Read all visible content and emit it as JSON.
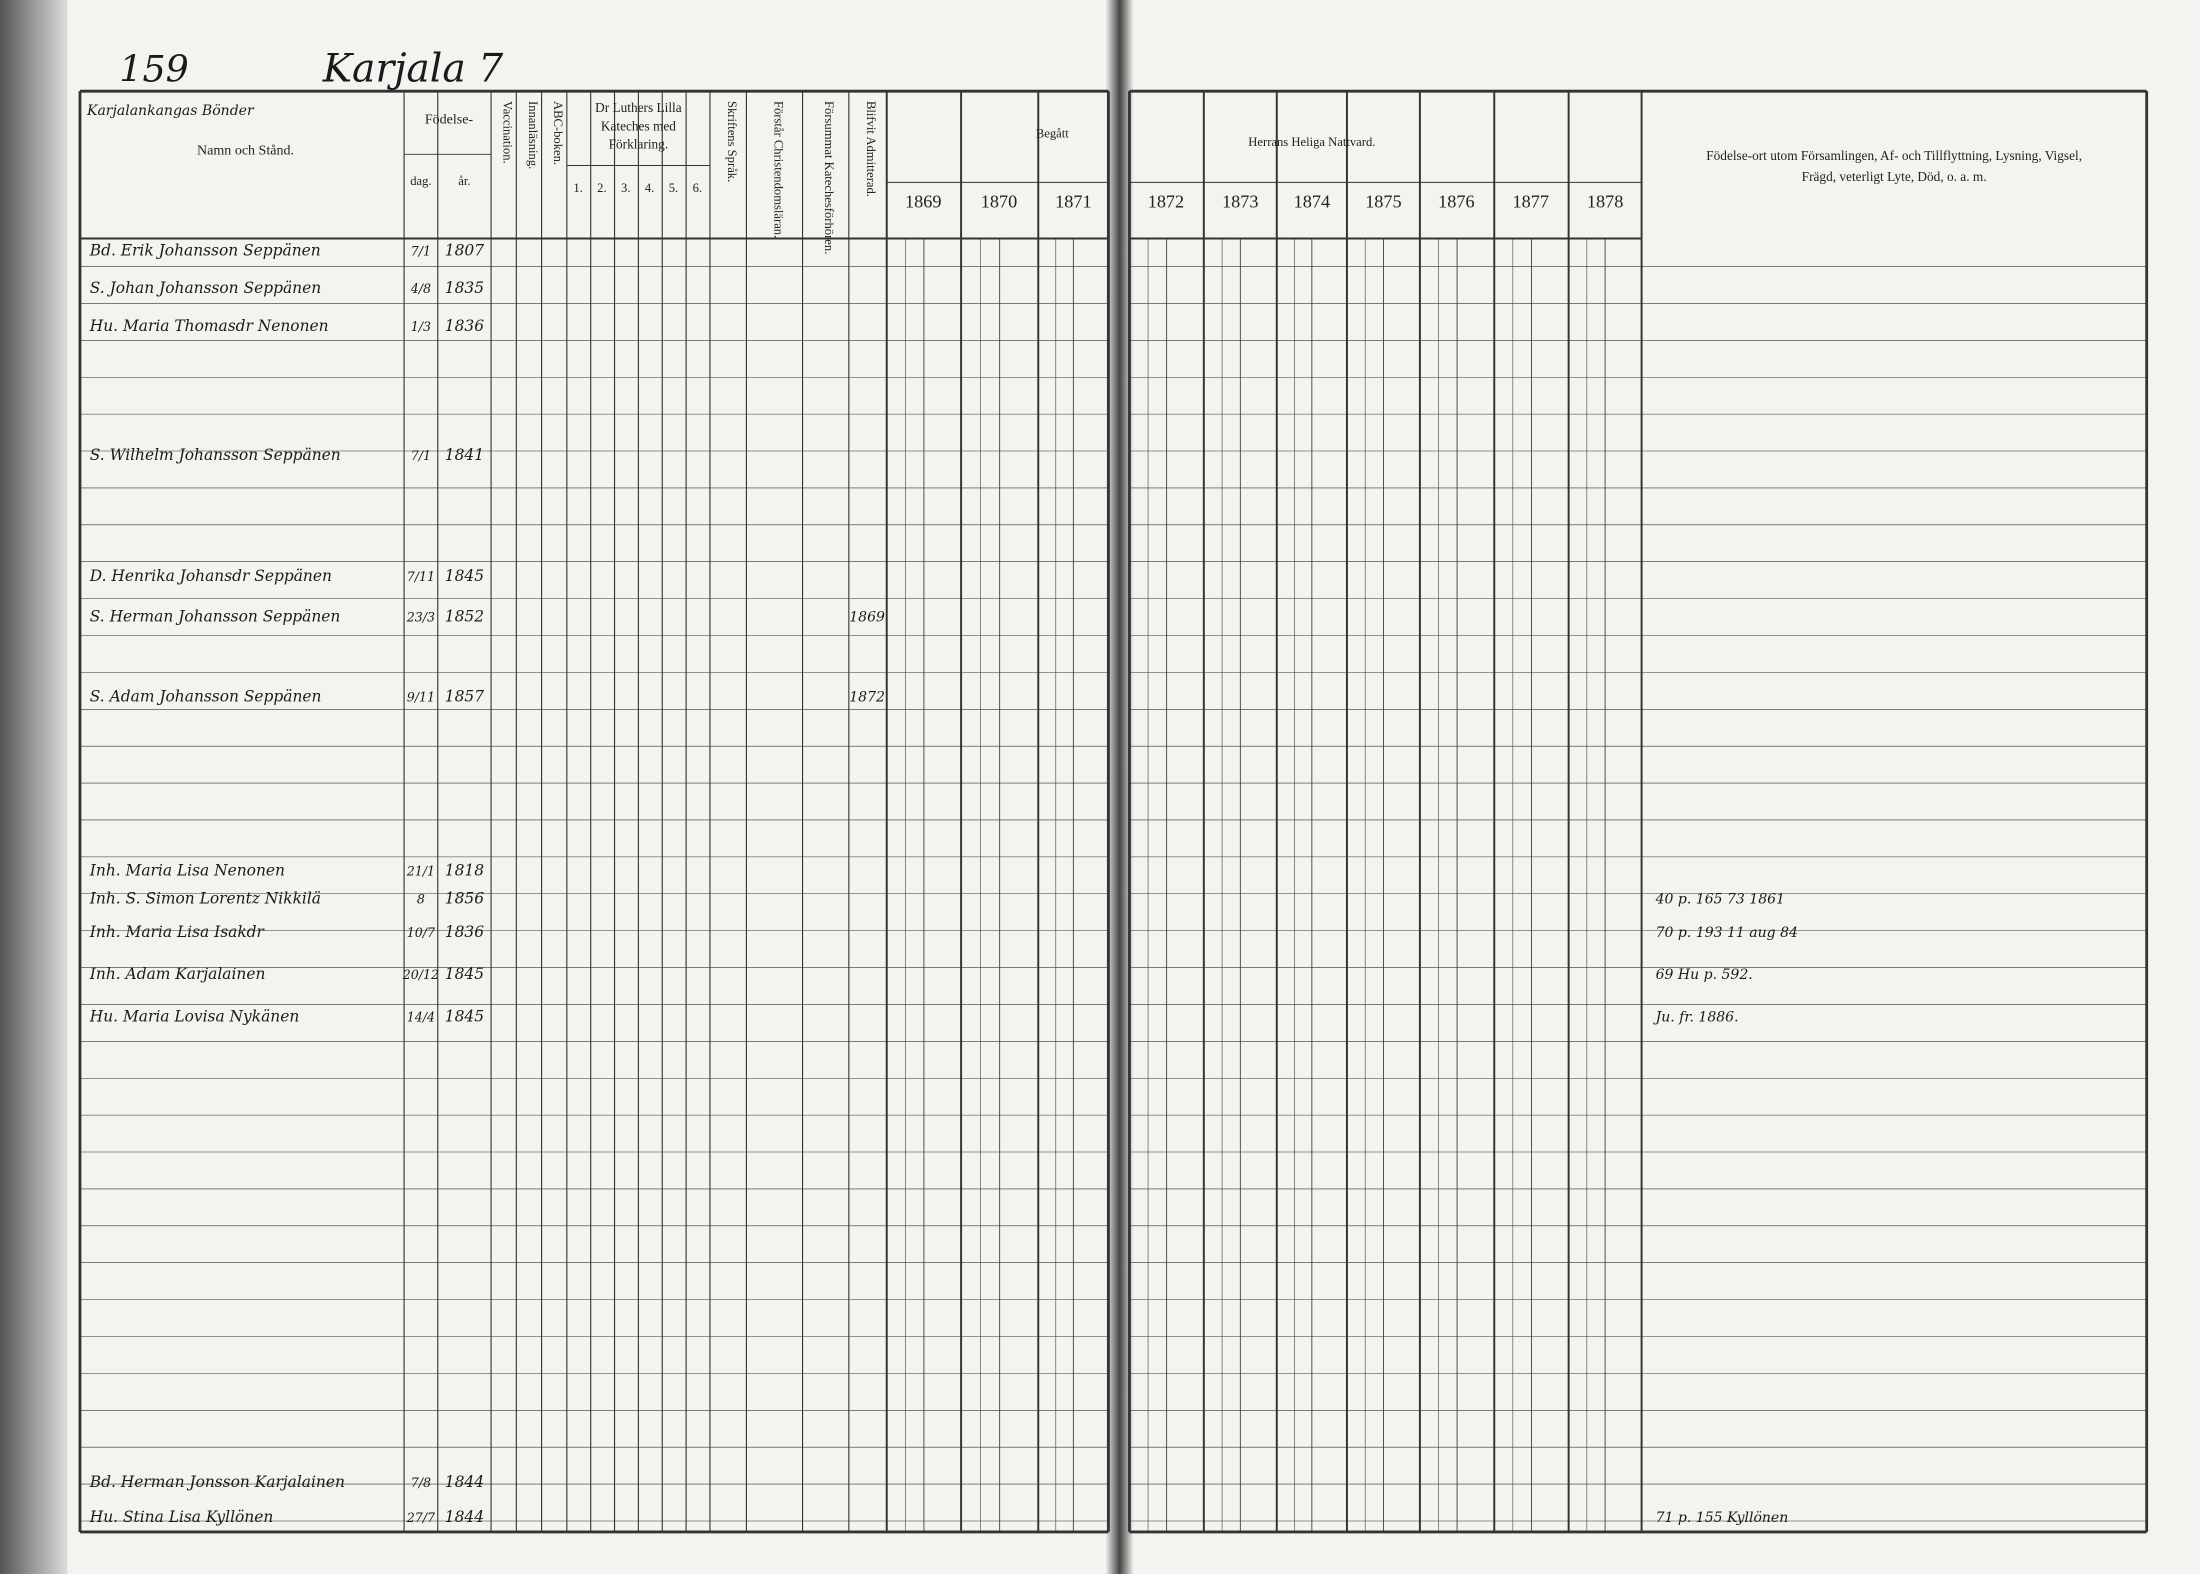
{
  "header": {
    "page_number": "159",
    "place": "Karjala 7",
    "village": "Karjalankangas Bönder"
  },
  "columns": {
    "name": "Namn och Stånd.",
    "birth": "Födelse-",
    "day": "dag.",
    "year": "år.",
    "vaccination": "Vaccination.",
    "reading": "Innanläsning.",
    "abc": "ABC-boken.",
    "catechism": [
      "Dr Luthers Lilla",
      "Kateches med",
      "Förklaring."
    ],
    "catechism_parts": [
      "1.",
      "2.",
      "3.",
      "4.",
      "5.",
      "6."
    ],
    "scripture": "Skriftens Språk.",
    "understands": "Förstår Christendomsläran.",
    "neglected": "Försummat Katechesförhören.",
    "admitted": "Blifvit Admitterad.",
    "begatt": "Begått",
    "communion": "Herrans Heliga Nattvard.",
    "years": [
      "1869",
      "1870",
      "1871",
      "1872",
      "1873",
      "1874",
      "1875",
      "1876",
      "1877",
      "1878"
    ],
    "notes": [
      "Födelse-ort utom Församlingen, Af- och Tillflyttning, Lysning, Vigsel,",
      "Frägd, veterligt Lyte, Död, o. a. m."
    ]
  },
  "rows": [
    {
      "name": "Bd. Erik Johansson Seppänen",
      "day": "7/1",
      "year": "1807"
    },
    {
      "name": "S. Johan Johansson Seppänen",
      "day": "4/8",
      "year": "1835"
    },
    {
      "name": "Hu. Maria Thomasdr Nenonen",
      "day": "1/3",
      "year": "1836"
    },
    {
      "name": "S. Wilhelm Johansson Seppänen",
      "day": "7/1",
      "year": "1841"
    },
    {
      "name": "D. Henrika Johansdr Seppänen",
      "day": "7/11",
      "year": "1845"
    },
    {
      "name": "S. Herman Johansson Seppänen",
      "day": "23/3",
      "year": "1852",
      "admitted": "1869"
    },
    {
      "name": "S. Adam Johansson Seppänen",
      "day": "9/11",
      "year": "1857",
      "admitted": "1872"
    },
    {
      "name": "Inh. Maria Lisa Nenonen",
      "day": "21/1",
      "year": "1818"
    },
    {
      "name": "Inh. S. Simon Lorentz Nikkilä",
      "day": "8",
      "year": "1856",
      "note": "40 p. 165 73 1861"
    },
    {
      "name": "Inh. Maria Lisa Isakdr",
      "day": "10/7",
      "year": "1836",
      "note": "70 p. 193 11 aug 84"
    },
    {
      "name": "Inh. Adam Karjalainen",
      "day": "20/12",
      "year": "1845",
      "note": "69 Hu p. 592."
    },
    {
      "name": "Hu. Maria Lovisa Nykänen",
      "day": "14/4",
      "year": "1845",
      "note": "Ju. fr. 1886."
    },
    {
      "name": "Bd. Herman Jonsson Karjalainen",
      "day": "7/8",
      "year": "1844"
    },
    {
      "name": "Hu. Stina Lisa Kyllönen",
      "day": "27/7",
      "year": "1844",
      "note": "71 p. 155 Kyllönen"
    }
  ]
}
